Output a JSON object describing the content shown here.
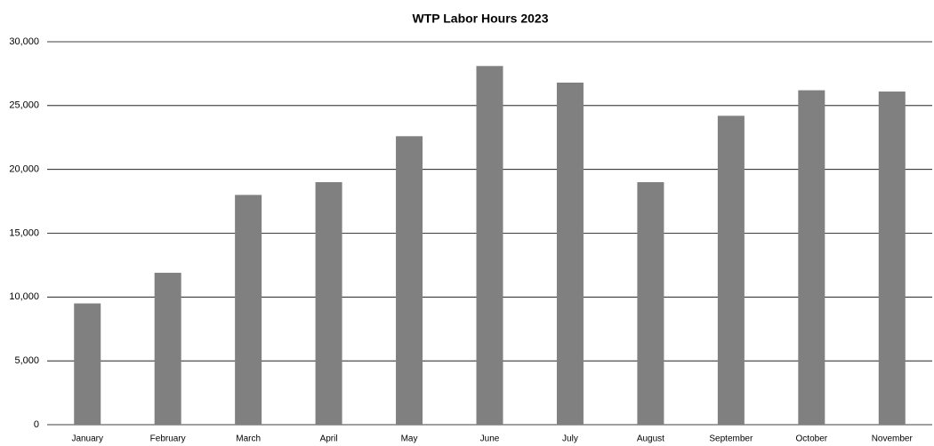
{
  "chart_data": {
    "type": "bar",
    "title": "WTP Labor Hours 2023",
    "categories": [
      "January",
      "February",
      "March",
      "April",
      "May",
      "June",
      "July",
      "August",
      "September",
      "October",
      "November"
    ],
    "values": [
      9500,
      11900,
      18000,
      19000,
      22600,
      28100,
      26800,
      19000,
      24200,
      26200,
      26100
    ],
    "color": "#808080",
    "ylim": [
      0,
      30000
    ],
    "yticks": [
      0,
      {
        "value": 5000,
        "label": "5,000"
      },
      {
        "value": 10000,
        "label": "10,000"
      },
      {
        "value": 15000,
        "label": "15,000"
      },
      {
        "value": 20000,
        "label": "20,000"
      },
      {
        "value": 25000,
        "label": "25,000"
      },
      {
        "value": 30000,
        "label": "30,000"
      }
    ],
    "grid": true
  }
}
